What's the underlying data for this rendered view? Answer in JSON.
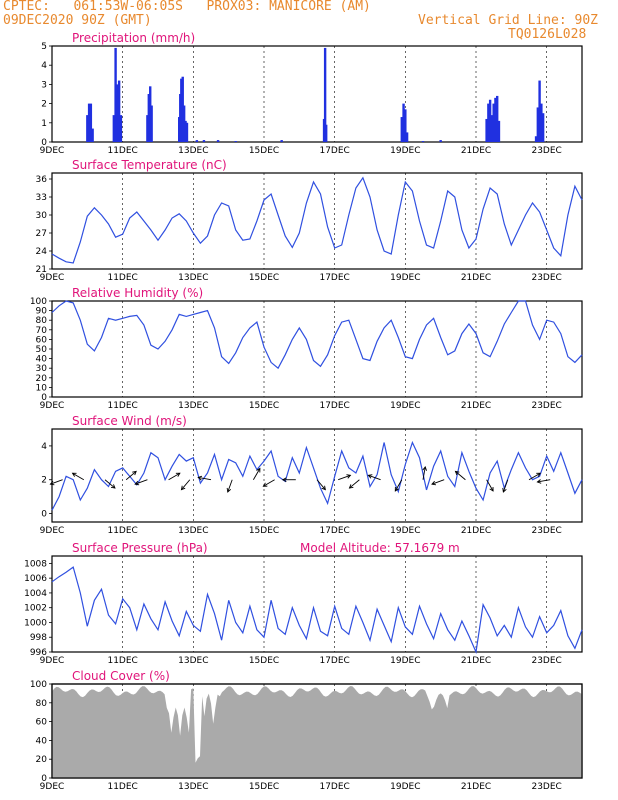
{
  "header": {
    "line1": "CPTEC:   061:53W-06:05S   PROX03: MANICORE (AM)",
    "line2": "09DEC2020 90Z (GMT)",
    "grid_note": "Vertical Grid Line: 90Z",
    "code": "TQ0126L028"
  },
  "x_ticks": [
    "9DEC",
    "11DEC",
    "13DEC",
    "15DEC",
    "17DEC",
    "19DEC",
    "21DEC",
    "23DEC"
  ],
  "colors": {
    "line": "#3050e0",
    "precip": "#2030e0",
    "cloud": "#aaaaaa",
    "title": "#e0147a",
    "header": "#e8892e"
  },
  "chart_data": [
    {
      "type": "bar",
      "title": "Precipitation (mm/h)",
      "ylim": [
        0,
        5
      ],
      "yticks": [
        "0",
        "1",
        "2",
        "3",
        "4",
        "5"
      ],
      "x_range": [
        0,
        15
      ],
      "x": [
        1.0,
        1.05,
        1.1,
        1.15,
        1.75,
        1.8,
        1.83,
        1.86,
        1.9,
        1.95,
        2.7,
        2.74,
        2.78,
        2.82,
        3.6,
        3.63,
        3.66,
        3.7,
        3.74,
        3.78,
        3.82,
        4.1,
        4.3,
        4.7,
        5.2,
        6.5,
        7.7,
        7.73,
        7.76,
        9.9,
        9.95,
        10.0,
        10.05,
        10.5,
        11.0,
        12.3,
        12.35,
        12.4,
        12.45,
        12.5,
        12.55,
        12.6,
        12.65,
        13.7,
        13.75,
        13.8,
        13.85,
        13.9
      ],
      "values": [
        1.4,
        2.0,
        2.0,
        0.7,
        1.4,
        4.9,
        2.4,
        3.0,
        3.2,
        1.4,
        1.4,
        2.5,
        2.9,
        1.9,
        1.3,
        2.5,
        3.3,
        3.4,
        1.9,
        1.1,
        1.0,
        0.1,
        0.1,
        0.1,
        0.05,
        0.1,
        1.2,
        4.9,
        0.9,
        1.3,
        2.0,
        1.7,
        0.5,
        0.05,
        0.1,
        1.2,
        2.0,
        2.2,
        1.4,
        2.0,
        2.3,
        2.4,
        1.1,
        0.3,
        1.8,
        3.2,
        2.0,
        1.5
      ]
    },
    {
      "type": "line",
      "title": "Surface Temperature (nC)",
      "ylim": [
        21,
        37
      ],
      "yticks": [
        "21",
        "24",
        "27",
        "30",
        "33",
        "36"
      ],
      "x_range": [
        0,
        15
      ],
      "x": [
        0,
        0.2,
        0.4,
        0.6,
        0.8,
        1.0,
        1.2,
        1.4,
        1.6,
        1.8,
        2.0,
        2.2,
        2.4,
        2.6,
        2.8,
        3.0,
        3.2,
        3.4,
        3.6,
        3.8,
        4.0,
        4.2,
        4.4,
        4.6,
        4.8,
        5.0,
        5.2,
        5.4,
        5.6,
        5.8,
        6.0,
        6.2,
        6.4,
        6.6,
        6.8,
        7.0,
        7.2,
        7.4,
        7.6,
        7.8,
        8.0,
        8.2,
        8.4,
        8.6,
        8.8,
        9.0,
        9.2,
        9.4,
        9.6,
        9.8,
        10.0,
        10.2,
        10.4,
        10.6,
        10.8,
        11.0,
        11.2,
        11.4,
        11.6,
        11.8,
        12.0,
        12.2,
        12.4,
        12.6,
        12.8,
        13.0,
        13.2,
        13.4,
        13.6,
        13.8,
        14.0,
        14.2,
        14.4,
        14.6,
        14.8,
        15.0
      ],
      "values": [
        23.5,
        22.8,
        22.2,
        22.0,
        25.5,
        29.8,
        31.2,
        30.0,
        28.5,
        26.3,
        26.8,
        29.5,
        30.5,
        29.0,
        27.5,
        25.8,
        27.5,
        29.5,
        30.2,
        29.0,
        27.0,
        25.3,
        26.5,
        30.0,
        32.0,
        31.5,
        27.5,
        25.8,
        26.0,
        29.0,
        32.5,
        33.5,
        30.0,
        26.5,
        24.6,
        27.0,
        32.0,
        35.5,
        33.5,
        28.0,
        24.5,
        25.0,
        30.0,
        34.5,
        36.2,
        33.0,
        27.5,
        24.0,
        23.5,
        30.0,
        35.5,
        34.0,
        29.0,
        25.0,
        24.5,
        29.0,
        34.0,
        33.0,
        27.5,
        24.5,
        26.0,
        31.0,
        34.5,
        33.5,
        28.5,
        25.0,
        27.5,
        30.0,
        32.0,
        30.5,
        27.5,
        24.5,
        23.2,
        30.0,
        34.8,
        32.5
      ]
    },
    {
      "type": "line",
      "title": "Relative Humidity (%)",
      "ylim": [
        0,
        100
      ],
      "yticks": [
        "0",
        "10",
        "20",
        "30",
        "40",
        "50",
        "60",
        "70",
        "80",
        "90",
        "100"
      ],
      "x_range": [
        0,
        15
      ],
      "x": [
        0,
        0.2,
        0.4,
        0.6,
        0.8,
        1.0,
        1.2,
        1.4,
        1.6,
        1.8,
        2.0,
        2.2,
        2.4,
        2.6,
        2.8,
        3.0,
        3.2,
        3.4,
        3.6,
        3.8,
        4.0,
        4.2,
        4.4,
        4.6,
        4.8,
        5.0,
        5.2,
        5.4,
        5.6,
        5.8,
        6.0,
        6.2,
        6.4,
        6.6,
        6.8,
        7.0,
        7.2,
        7.4,
        7.6,
        7.8,
        8.0,
        8.2,
        8.4,
        8.6,
        8.8,
        9.0,
        9.2,
        9.4,
        9.6,
        9.8,
        10.0,
        10.2,
        10.4,
        10.6,
        10.8,
        11.0,
        11.2,
        11.4,
        11.6,
        11.8,
        12.0,
        12.2,
        12.4,
        12.6,
        12.8,
        13.0,
        13.2,
        13.4,
        13.6,
        13.8,
        14.0,
        14.2,
        14.4,
        14.6,
        14.8,
        15.0
      ],
      "values": [
        88,
        95,
        100,
        98,
        80,
        55,
        48,
        62,
        82,
        80,
        82,
        84,
        85,
        75,
        54,
        50,
        58,
        70,
        86,
        84,
        86,
        88,
        90,
        72,
        42,
        35,
        46,
        62,
        72,
        78,
        52,
        36,
        30,
        44,
        60,
        72,
        60,
        38,
        32,
        44,
        64,
        78,
        80,
        60,
        40,
        38,
        58,
        72,
        80,
        62,
        42,
        40,
        60,
        75,
        82,
        62,
        44,
        48,
        66,
        76,
        66,
        46,
        42,
        58,
        76,
        88,
        100,
        100,
        75,
        60,
        80,
        78,
        66,
        42,
        36,
        44
      ]
    },
    {
      "type": "line",
      "title": "Surface Wind (m/s)",
      "ylim": [
        -0.5,
        5
      ],
      "yticks": [
        "0",
        "2",
        "4"
      ],
      "x_range": [
        0,
        15
      ],
      "x": [
        0,
        0.2,
        0.4,
        0.6,
        0.8,
        1.0,
        1.2,
        1.4,
        1.6,
        1.8,
        2.0,
        2.2,
        2.4,
        2.6,
        2.8,
        3.0,
        3.2,
        3.4,
        3.6,
        3.8,
        4.0,
        4.2,
        4.4,
        4.6,
        4.8,
        5.0,
        5.2,
        5.4,
        5.6,
        5.8,
        6.0,
        6.2,
        6.4,
        6.6,
        6.8,
        7.0,
        7.2,
        7.4,
        7.6,
        7.8,
        8.0,
        8.2,
        8.4,
        8.6,
        8.8,
        9.0,
        9.2,
        9.4,
        9.6,
        9.8,
        10.0,
        10.2,
        10.4,
        10.6,
        10.8,
        11.0,
        11.2,
        11.4,
        11.6,
        11.8,
        12.0,
        12.2,
        12.4,
        12.6,
        12.8,
        13.0,
        13.2,
        13.4,
        13.6,
        13.8,
        14.0,
        14.2,
        14.4,
        14.6,
        14.8,
        15.0
      ],
      "values": [
        0.2,
        1.0,
        2.2,
        2.0,
        0.8,
        1.5,
        2.6,
        2.0,
        1.6,
        2.5,
        2.7,
        2.2,
        1.7,
        2.4,
        3.6,
        3.3,
        2.0,
        2.8,
        3.5,
        3.1,
        3.3,
        1.8,
        2.4,
        3.5,
        2.0,
        3.2,
        3.0,
        2.2,
        3.4,
        2.6,
        3.1,
        3.7,
        2.2,
        1.9,
        3.3,
        2.4,
        3.9,
        2.7,
        1.5,
        0.6,
        2.2,
        3.7,
        2.7,
        2.4,
        3.4,
        1.6,
        2.3,
        4.2,
        2.3,
        1.3,
        2.9,
        4.2,
        3.3,
        1.4,
        2.8,
        3.7,
        2.2,
        1.6,
        3.6,
        2.5,
        1.5,
        0.8,
        2.4,
        3.1,
        1.5,
        2.6,
        3.6,
        2.7,
        2.0,
        2.2,
        3.4,
        2.5,
        3.6,
        2.4,
        1.2,
        2.0
      ]
    },
    {
      "type": "line",
      "title": "Surface Pressure (hPa)",
      "annotation": "Model Altitude: 57.1679 m",
      "ylim": [
        996,
        1009
      ],
      "yticks": [
        "996",
        "998",
        "1000",
        "1002",
        "1004",
        "1006",
        "1008"
      ],
      "x_range": [
        0,
        15
      ],
      "x": [
        0,
        0.2,
        0.4,
        0.6,
        0.8,
        1.0,
        1.2,
        1.4,
        1.6,
        1.8,
        2.0,
        2.2,
        2.4,
        2.6,
        2.8,
        3.0,
        3.2,
        3.4,
        3.6,
        3.8,
        4.0,
        4.2,
        4.4,
        4.6,
        4.8,
        5.0,
        5.2,
        5.4,
        5.6,
        5.8,
        6.0,
        6.2,
        6.4,
        6.6,
        6.8,
        7.0,
        7.2,
        7.4,
        7.6,
        7.8,
        8.0,
        8.2,
        8.4,
        8.6,
        8.8,
        9.0,
        9.2,
        9.4,
        9.6,
        9.8,
        10.0,
        10.2,
        10.4,
        10.6,
        10.8,
        11.0,
        11.2,
        11.4,
        11.6,
        11.8,
        12.0,
        12.2,
        12.4,
        12.6,
        12.8,
        13.0,
        13.2,
        13.4,
        13.6,
        13.8,
        14.0,
        14.2,
        14.4,
        14.6,
        14.8,
        15.0
      ],
      "values": [
        1005.5,
        1006.2,
        1006.8,
        1007.5,
        1004.0,
        999.5,
        1003.0,
        1004.5,
        1001.0,
        999.8,
        1003.2,
        1002.0,
        999.0,
        1002.5,
        1000.5,
        999.0,
        1002.8,
        1000.2,
        998.2,
        1001.5,
        999.6,
        998.8,
        1003.8,
        1001.2,
        997.6,
        1003.0,
        1000.0,
        998.6,
        1002.2,
        999.0,
        998.0,
        1003.0,
        999.2,
        998.4,
        1002.0,
        999.6,
        997.8,
        1002.0,
        998.8,
        998.2,
        1002.2,
        999.2,
        998.4,
        1002.2,
        1000.0,
        997.6,
        1001.8,
        999.6,
        997.4,
        1002.0,
        999.4,
        998.4,
        1002.2,
        999.8,
        997.8,
        1001.2,
        999.0,
        997.6,
        1000.2,
        998.2,
        995.8,
        1002.4,
        1000.6,
        998.2,
        999.6,
        998.0,
        1002.0,
        999.4,
        998.0,
        1000.8,
        998.6,
        999.6,
        1001.6,
        998.2,
        996.5,
        999.0
      ]
    }
  ],
  "panel_titles": {
    "cloud": "Cloud Cover (%)"
  },
  "cloud_yticks": [
    "0",
    "20",
    "40",
    "60",
    "80",
    "100"
  ]
}
